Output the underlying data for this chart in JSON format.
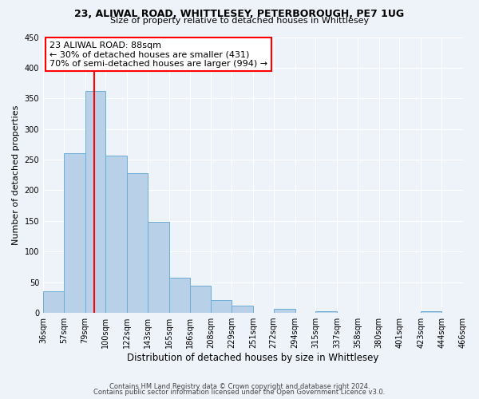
{
  "title1": "23, ALIWAL ROAD, WHITTLESEY, PETERBOROUGH, PE7 1UG",
  "title2": "Size of property relative to detached houses in Whittlesey",
  "xlabel": "Distribution of detached houses by size in Whittlesey",
  "ylabel": "Number of detached properties",
  "bar_heights": [
    35,
    260,
    362,
    256,
    228,
    148,
    57,
    45,
    21,
    12,
    0,
    6,
    0,
    3,
    0,
    0,
    0,
    0,
    3,
    0
  ],
  "bin_labels": [
    "36sqm",
    "57sqm",
    "79sqm",
    "100sqm",
    "122sqm",
    "143sqm",
    "165sqm",
    "186sqm",
    "208sqm",
    "229sqm",
    "251sqm",
    "272sqm",
    "294sqm",
    "315sqm",
    "337sqm",
    "358sqm",
    "380sqm",
    "401sqm",
    "423sqm",
    "444sqm",
    "466sqm"
  ],
  "bar_color": "#b8d0e8",
  "bar_edge_color": "#6aaed6",
  "red_line_x": 88,
  "bin_edges": [
    36,
    57,
    79,
    100,
    122,
    143,
    165,
    186,
    208,
    229,
    251,
    272,
    294,
    315,
    337,
    358,
    380,
    401,
    423,
    444,
    466
  ],
  "annotation_title": "23 ALIWAL ROAD: 88sqm",
  "annotation_line1": "← 30% of detached houses are smaller (431)",
  "annotation_line2": "70% of semi-detached houses are larger (994) →",
  "ylim": [
    0,
    450
  ],
  "yticks": [
    0,
    50,
    100,
    150,
    200,
    250,
    300,
    350,
    400,
    450
  ],
  "footer1": "Contains HM Land Registry data © Crown copyright and database right 2024.",
  "footer2": "Contains public sector information licensed under the Open Government Licence v3.0.",
  "bg_color": "#eef2f9",
  "grid_color": "#ffffff"
}
